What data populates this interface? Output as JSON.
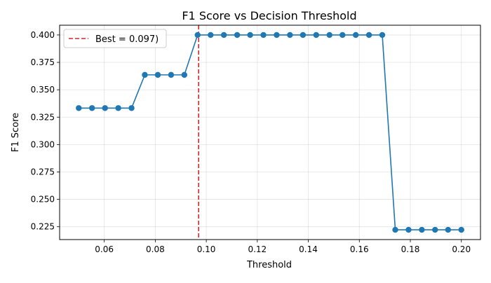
{
  "chart_data": {
    "type": "line",
    "title": "F1 Score vs Decision Threshold",
    "xlabel": "Threshold",
    "ylabel": "F1 Score",
    "xlim": [
      0.0425,
      0.2075
    ],
    "ylim": [
      0.2133,
      0.4089
    ],
    "xticks": [
      0.06,
      0.08,
      0.1,
      0.12,
      0.14,
      0.16,
      0.18,
      0.2
    ],
    "xtick_labels": [
      "0.06",
      "0.08",
      "0.10",
      "0.12",
      "0.14",
      "0.16",
      "0.18",
      "0.20"
    ],
    "yticks": [
      0.225,
      0.25,
      0.275,
      0.3,
      0.325,
      0.35,
      0.375,
      0.4
    ],
    "ytick_labels": [
      "0.225",
      "0.250",
      "0.275",
      "0.300",
      "0.325",
      "0.350",
      "0.375",
      "0.400"
    ],
    "grid": true,
    "legend_position": "top-left",
    "series": [
      {
        "color": "#1f77b4",
        "marker": "circle",
        "x": [
          0.05,
          0.0552,
          0.0603,
          0.0655,
          0.0707,
          0.0759,
          0.081,
          0.0862,
          0.0914,
          0.0966,
          0.1017,
          0.1069,
          0.1121,
          0.1172,
          0.1224,
          0.1276,
          0.1328,
          0.1379,
          0.1431,
          0.1483,
          0.1534,
          0.1586,
          0.1638,
          0.169,
          0.1741,
          0.1793,
          0.1845,
          0.1897,
          0.1948,
          0.2
        ],
        "y": [
          0.3333,
          0.3333,
          0.3333,
          0.3333,
          0.3333,
          0.3636,
          0.3636,
          0.3636,
          0.3636,
          0.4,
          0.4,
          0.4,
          0.4,
          0.4,
          0.4,
          0.4,
          0.4,
          0.4,
          0.4,
          0.4,
          0.4,
          0.4,
          0.4,
          0.4,
          0.2222,
          0.2222,
          0.2222,
          0.2222,
          0.2222,
          0.2222
        ]
      }
    ],
    "reference_lines": [
      {
        "orientation": "vertical",
        "x": 0.097,
        "color": "#d62728",
        "style": "dashed",
        "label": "Best = 0.097)"
      }
    ]
  }
}
